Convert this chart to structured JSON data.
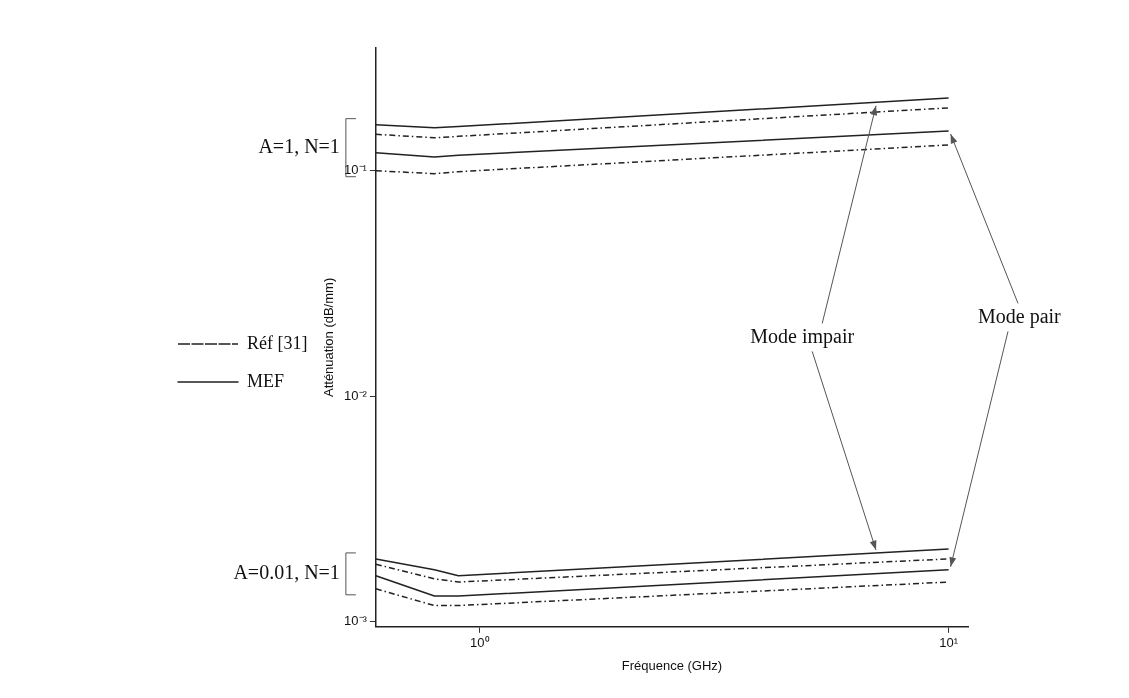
{
  "chart_data": {
    "type": "line",
    "xlabel": "Fréquence (GHz)",
    "ylabel": "Atténuation (dB/mm)",
    "log": "xy",
    "xlim": [
      0.6,
      11
    ],
    "ylim": [
      0.00095,
      0.35
    ],
    "xticks": [
      {
        "value": 1,
        "label": "10⁰"
      },
      {
        "value": 10,
        "label": "10¹"
      }
    ],
    "yticks": [
      {
        "value": 0.001,
        "label": "10⁻³"
      },
      {
        "value": 0.01,
        "label": "10⁻²"
      },
      {
        "value": 0.1,
        "label": "10⁻¹"
      }
    ],
    "x": [
      0.6,
      0.8,
      0.9,
      10
    ],
    "series": [
      {
        "name": "Réf [31]",
        "color": "#222222",
        "line_style": "dashdot",
        "values": [
          0.145,
          0.14,
          0.142,
          0.19
        ]
      },
      {
        "name": "MEF",
        "color": "#222222",
        "line_style": "solid",
        "values": [
          0.16,
          0.155,
          0.157,
          0.21
        ]
      },
      {
        "color": "#222222",
        "line_style": "dashdot",
        "values": [
          0.1,
          0.097,
          0.099,
          0.13
        ]
      },
      {
        "color": "#222222",
        "line_style": "solid",
        "values": [
          0.12,
          0.115,
          0.117,
          0.15
        ]
      },
      {
        "color": "#222222",
        "line_style": "dashdot",
        "values": [
          0.0018,
          0.00155,
          0.0015,
          0.0019
        ]
      },
      {
        "color": "#222222",
        "line_style": "solid",
        "values": [
          0.0019,
          0.0017,
          0.0016,
          0.0021
        ]
      },
      {
        "color": "#222222",
        "line_style": "dashdot",
        "values": [
          0.0014,
          0.00118,
          0.00118,
          0.0015
        ]
      },
      {
        "color": "#222222",
        "line_style": "solid",
        "values": [
          0.0016,
          0.0013,
          0.0013,
          0.0017
        ]
      }
    ],
    "legend": "left",
    "grid": false,
    "annotations": [
      "A=1, N=1",
      "A=0.01, N=1",
      {
        "text": "Mode impair",
        "x": 7,
        "y": 0.2
      },
      {
        "text": "Mode pair",
        "x": 10,
        "y": 0.15
      }
    ]
  }
}
